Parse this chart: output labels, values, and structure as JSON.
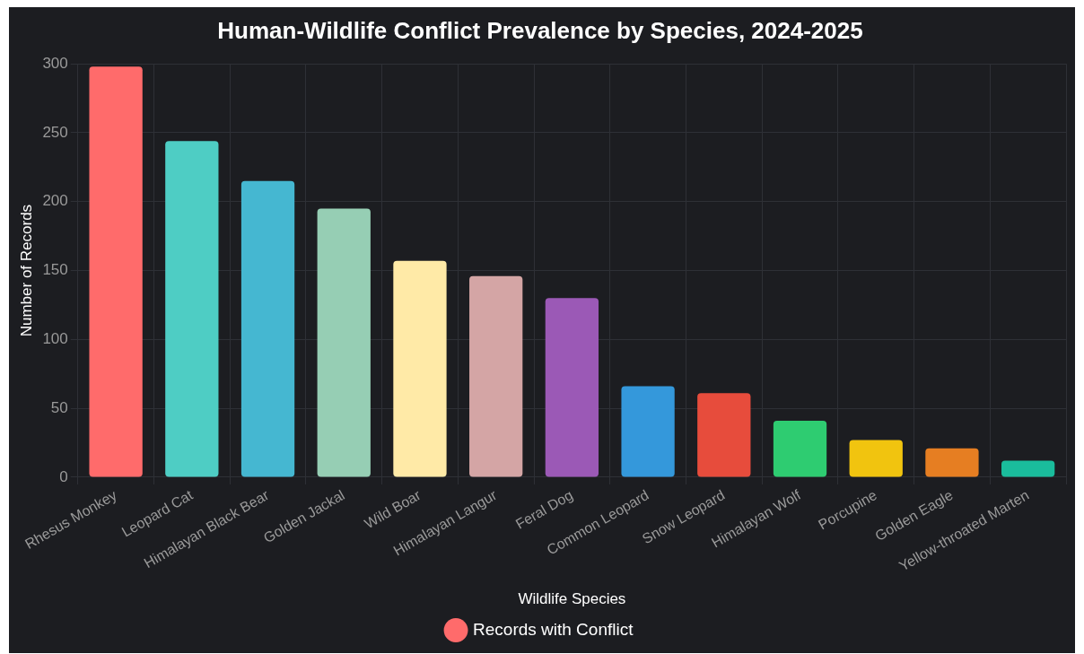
{
  "chart_data": {
    "type": "bar",
    "title": "Human-Wildlife Conflict Prevalence by Species, 2024-2025",
    "xlabel": "Wildlife Species",
    "ylabel": "Number of Records",
    "categories": [
      "Rhesus Monkey",
      "Leopard Cat",
      "Himalayan Black Bear",
      "Golden Jackal",
      "Wild Boar",
      "Himalayan Langur",
      "Feral Dog",
      "Common Leopard",
      "Snow Leopard",
      "Himalayan Wolf",
      "Porcupine",
      "Golden Eagle",
      "Yellow-throated Marten"
    ],
    "series": [
      {
        "name": "Records with Conflict",
        "colors": [
          "#ff6b6b",
          "#4ecdc4",
          "#45b7d1",
          "#96ceb4",
          "#ffeaa7",
          "#d4a5a5",
          "#9b59b6",
          "#3498db",
          "#e74c3c",
          "#2ecc71",
          "#f1c40f",
          "#e67e22",
          "#1abc9c"
        ],
        "values": [
          298,
          244,
          215,
          195,
          157,
          146,
          130,
          66,
          61,
          41,
          27,
          21,
          12
        ]
      }
    ],
    "ylim": [
      0,
      300
    ],
    "yticks": [
      0,
      50,
      100,
      150,
      200,
      250,
      300
    ],
    "grid": true,
    "legend": "bottom"
  }
}
